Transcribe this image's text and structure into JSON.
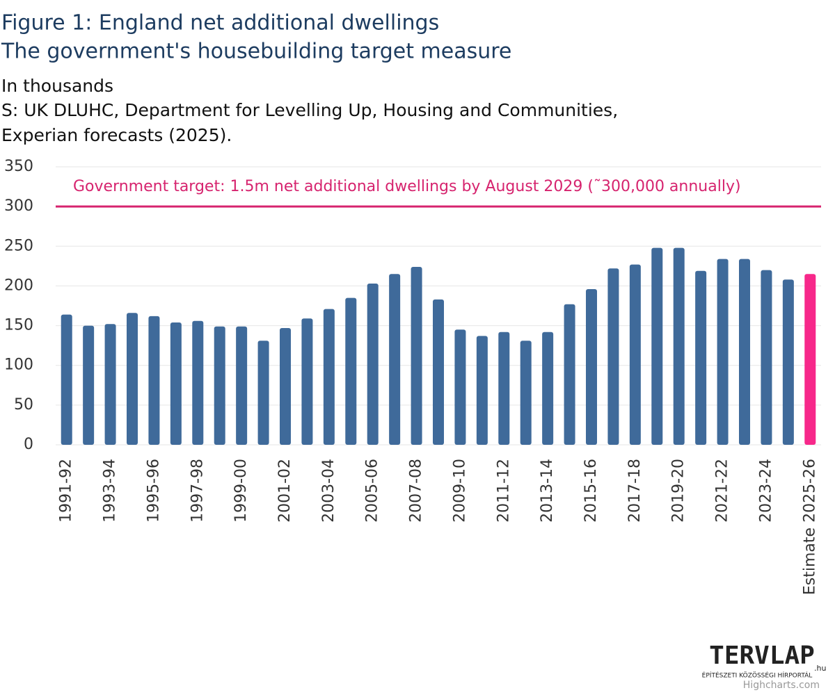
{
  "chart_data": {
    "type": "bar",
    "title": "Figure 1: England net additional dwellings",
    "subtitle": "The government's housebuilding target measure",
    "unit_note": "In thousands",
    "source": [
      "S: UK DLUHC, Department for Levelling Up, Housing and Communities,",
      "Experian forecasts (2025)."
    ],
    "categories": [
      "1991-92",
      null,
      "1993-94",
      null,
      "1995-96",
      null,
      "1997-98",
      null,
      "1999-00",
      null,
      "2001-02",
      null,
      "2003-04",
      null,
      "2005-06",
      null,
      "2007-08",
      null,
      "2009-10",
      null,
      "2011-12",
      null,
      "2013-14",
      null,
      "2015-16",
      null,
      "2017-18",
      null,
      "2019-20",
      null,
      "2021-22",
      null,
      "2023-24",
      null,
      "Estimate 2025-26"
    ],
    "series": [
      {
        "values": [
          164,
          150,
          152,
          166,
          162,
          154,
          156,
          149,
          149,
          131,
          147,
          159,
          171,
          185,
          203,
          215,
          224,
          183,
          145,
          137,
          142,
          131,
          142,
          177,
          196,
          222,
          227,
          248,
          248,
          219,
          234,
          234,
          220,
          208,
          215
        ],
        "color": "#3f6a9a",
        "colors": [
          "#3f6a9a",
          "#3f6a9a",
          "#3f6a9a",
          "#3f6a9a",
          "#3f6a9a",
          "#3f6a9a",
          "#3f6a9a",
          "#3f6a9a",
          "#3f6a9a",
          "#3f6a9a",
          "#3f6a9a",
          "#3f6a9a",
          "#3f6a9a",
          "#3f6a9a",
          "#3f6a9a",
          "#3f6a9a",
          "#3f6a9a",
          "#3f6a9a",
          "#3f6a9a",
          "#3f6a9a",
          "#3f6a9a",
          "#3f6a9a",
          "#3f6a9a",
          "#3f6a9a",
          "#3f6a9a",
          "#3f6a9a",
          "#3f6a9a",
          "#3f6a9a",
          "#3f6a9a",
          "#3f6a9a",
          "#3f6a9a",
          "#3f6a9a",
          "#3f6a9a",
          "#3f6a9a",
          "#f7288a"
        ]
      }
    ],
    "target": {
      "value": 300,
      "label": "Government target: 1.5m net additional dwellings by August 2029 (˜300,000 annually)",
      "color": "#d6236e"
    },
    "ylim": [
      0,
      350
    ],
    "yticks": [
      0,
      50,
      100,
      150,
      200,
      250,
      300,
      350
    ],
    "grid": true,
    "logo": {
      "name": "TERVLAP",
      "domain": ".hu",
      "tagline": "ÉPÍTÉSZETI KÖZÖSSÉGI HÍRPORTÁL"
    },
    "credits": "Highcharts.com"
  }
}
